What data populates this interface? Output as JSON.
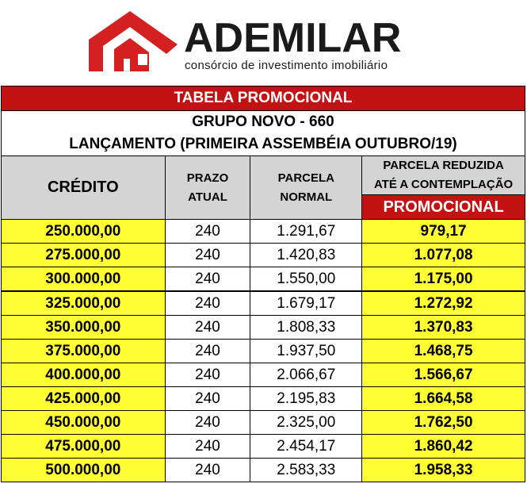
{
  "brand": {
    "name": "ADEMILAR",
    "tagline": "consórcio de investimento imobiliário",
    "color": "#d42020"
  },
  "table": {
    "title": "TABELA PROMOCIONAL",
    "group": "GRUPO NOVO - 660",
    "launch": "LANÇAMENTO (PRIMEIRA ASSEMBÉIA OUTUBRO/19)",
    "headers": {
      "credit": "CRÉDITO",
      "term_line1": "PRAZO",
      "term_line2": "ATUAL",
      "installment_line1": "PARCELA",
      "installment_line2": "NORMAL",
      "reduced_line1": "PARCELA REDUZIDA",
      "reduced_line2": "ATÉ A CONTEMPLAÇÃO",
      "promo": "PROMOCIONAL"
    },
    "rows": [
      {
        "credit": "250.000,00",
        "term": "240",
        "normal": "1.291,67",
        "reduced": "979,17"
      },
      {
        "credit": "275.000,00",
        "term": "240",
        "normal": "1.420,83",
        "reduced": "1.077,08"
      },
      {
        "credit": "300.000,00",
        "term": "240",
        "normal": "1.550,00",
        "reduced": "1.175,00"
      },
      {
        "credit": "325.000,00",
        "term": "240",
        "normal": "1.679,17",
        "reduced": "1.272,92"
      },
      {
        "credit": "350.000,00",
        "term": "240",
        "normal": "1.808,33",
        "reduced": "1.370,83"
      },
      {
        "credit": "375.000,00",
        "term": "240",
        "normal": "1.937,50",
        "reduced": "1.468,75"
      },
      {
        "credit": "400.000,00",
        "term": "240",
        "normal": "2.066,67",
        "reduced": "1.566,67"
      },
      {
        "credit": "425.000,00",
        "term": "240",
        "normal": "2.195,83",
        "reduced": "1.664,58"
      },
      {
        "credit": "450.000,00",
        "term": "240",
        "normal": "2.325,00",
        "reduced": "1.762,50"
      },
      {
        "credit": "475.000,00",
        "term": "240",
        "normal": "2.454,17",
        "reduced": "1.860,42"
      },
      {
        "credit": "500.000,00",
        "term": "240",
        "normal": "2.583,33",
        "reduced": "1.958,33"
      }
    ]
  }
}
